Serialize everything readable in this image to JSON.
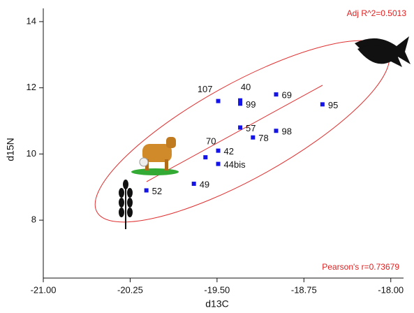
{
  "chart_data": {
    "type": "scatter",
    "x_label": "d13C",
    "y_label": "d15N",
    "annotations": [
      "Adj R^2=0.5013",
      "Pearson's r=0.73679"
    ],
    "color": "#1414e6",
    "labels": [
      "107",
      "40",
      "99",
      "69",
      "95",
      "57",
      "78",
      "98",
      "70",
      "42",
      "44bis",
      "49",
      "52"
    ],
    "x": [
      -19.49,
      -19.3,
      -19.3,
      -18.99,
      -18.59,
      -19.3,
      -19.19,
      -18.99,
      -19.6,
      -19.49,
      -19.49,
      -19.7,
      -20.11
    ],
    "values": [
      11.6,
      11.62,
      11.52,
      11.8,
      11.5,
      10.8,
      10.5,
      10.7,
      9.9,
      10.1,
      9.7,
      9.1,
      8.9
    ],
    "xlim": [
      -21,
      -17.89
    ],
    "ylim": [
      6.25,
      14.4
    ],
    "xticks": [
      {
        "value": -21,
        "label": "-21.00"
      },
      {
        "value": -20.25,
        "label": "-20.25"
      },
      {
        "value": -19.5,
        "label": "-19.50"
      },
      {
        "value": -18.75,
        "label": "-18.75"
      },
      {
        "value": -18,
        "label": "-18.00"
      }
    ],
    "yticks": [
      8,
      10,
      12,
      14
    ]
  }
}
